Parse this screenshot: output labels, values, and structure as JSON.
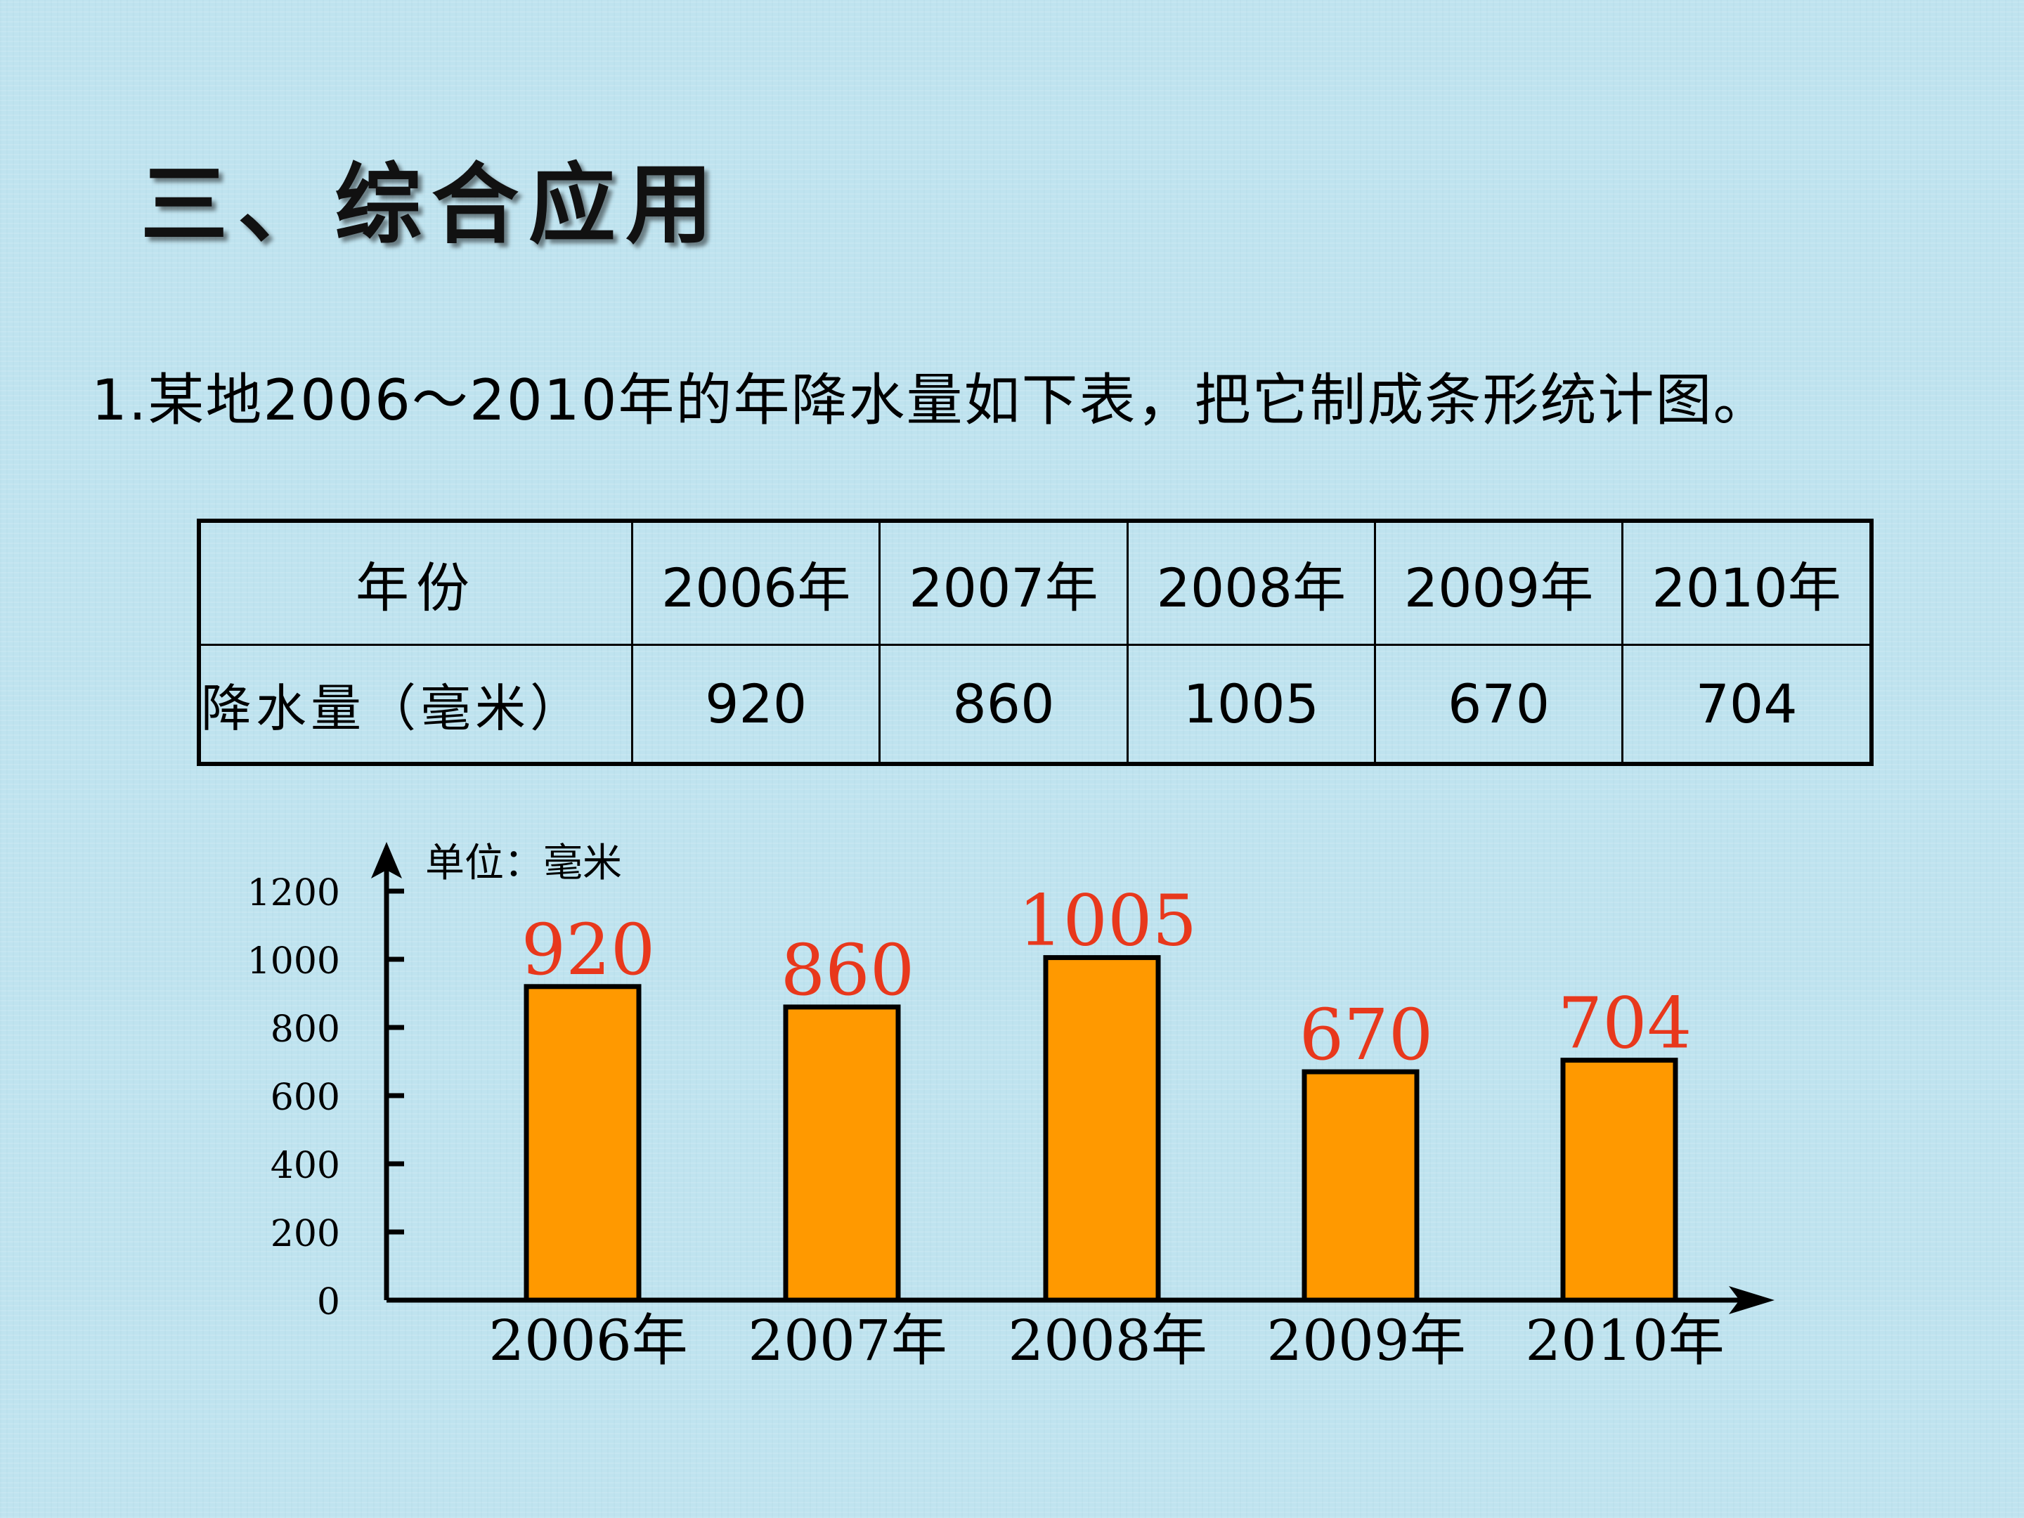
{
  "heading": "三、综合应用",
  "question": "1.某地2006～2010年的年降水量如下表，把它制成条形统计图。",
  "table": {
    "header_year": "年份",
    "header_rain": "降水量（毫米）",
    "years": [
      "2006年",
      "2007年",
      "2008年",
      "2009年",
      "2010年"
    ],
    "values": [
      "920",
      "860",
      "1005",
      "670",
      "704"
    ]
  },
  "chart_data": {
    "type": "bar",
    "unit_label": "单位：毫米",
    "categories": [
      "2006年",
      "2007年",
      "2008年",
      "2009年",
      "2010年"
    ],
    "values": [
      920,
      860,
      1005,
      670,
      704
    ],
    "data_labels": [
      "920",
      "860",
      "1005",
      "670",
      "704"
    ],
    "yticks": [
      0,
      200,
      400,
      600,
      800,
      1000,
      1200
    ],
    "ylim": [
      0,
      1200
    ],
    "bar_color": "#ff9900",
    "label_color": "#e8381c",
    "legend": "none",
    "grid": false
  }
}
